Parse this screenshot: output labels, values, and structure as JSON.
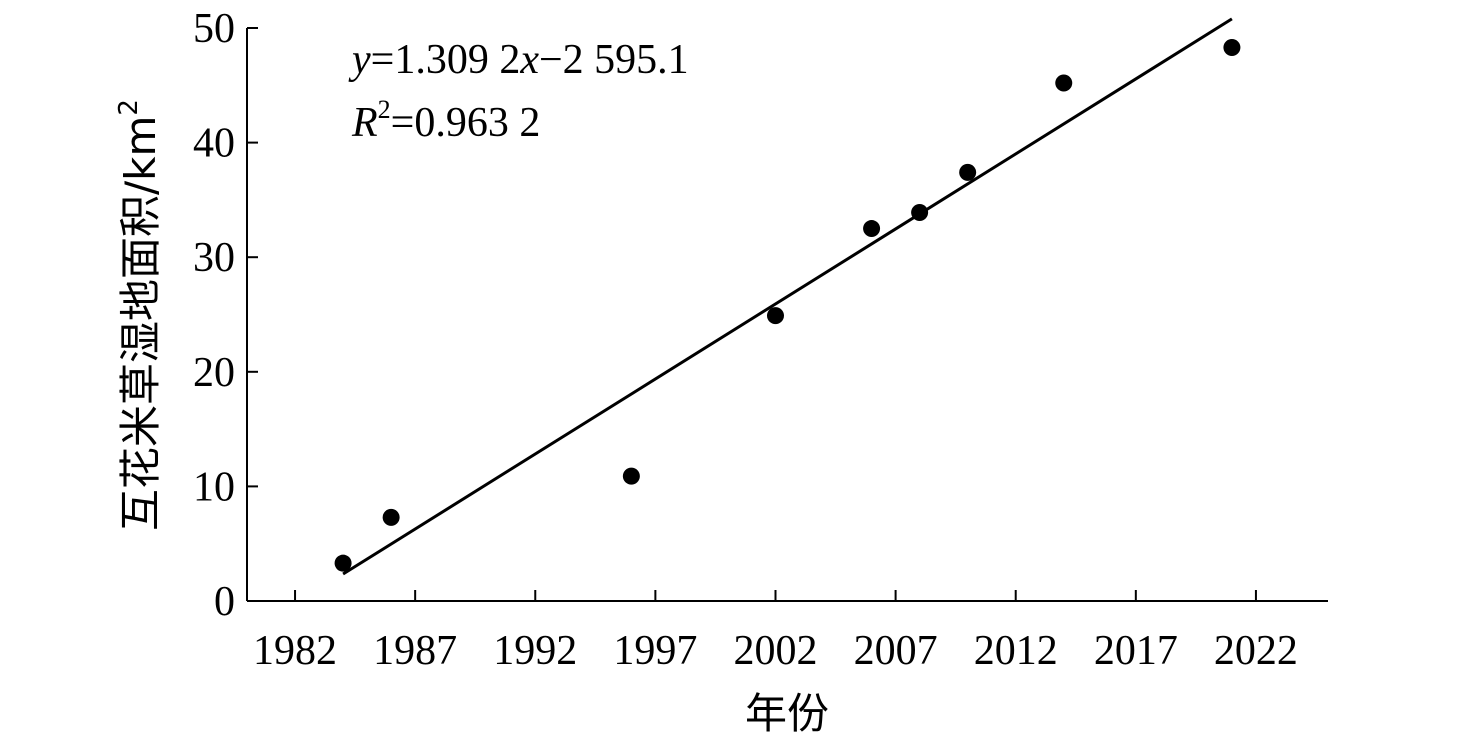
{
  "chart_data": {
    "type": "scatter",
    "xlabel": "年份",
    "ylabel": "互花米草湿地面积/km²",
    "ylabel_main": "互花米草湿地面积/km",
    "ylabel_sup": "2",
    "xlim": [
      1980,
      2025
    ],
    "ylim": [
      0,
      50
    ],
    "xticks": [
      1982,
      1987,
      1992,
      1997,
      2002,
      2007,
      2012,
      2017,
      2022
    ],
    "yticks": [
      0,
      10,
      20,
      30,
      40,
      50
    ],
    "grid": false,
    "series": [
      {
        "x": [
          1984,
          1986,
          1996,
          2002,
          2006,
          2008,
          2010,
          2014,
          2021
        ],
        "y": [
          3.3,
          7.3,
          10.9,
          24.9,
          32.5,
          33.9,
          37.4,
          45.2,
          48.3
        ]
      }
    ],
    "fit": {
      "slope": 1.3092,
      "intercept": -2595.1,
      "x_start": 1984,
      "x_end": 2021,
      "equation_y": "y",
      "equation_eq1": "=1.309 2",
      "equation_x": "x",
      "equation_rest": "−2 595.1",
      "r2_label": "R",
      "r2_sup": "2",
      "r2_value": "=0.963 2"
    }
  }
}
